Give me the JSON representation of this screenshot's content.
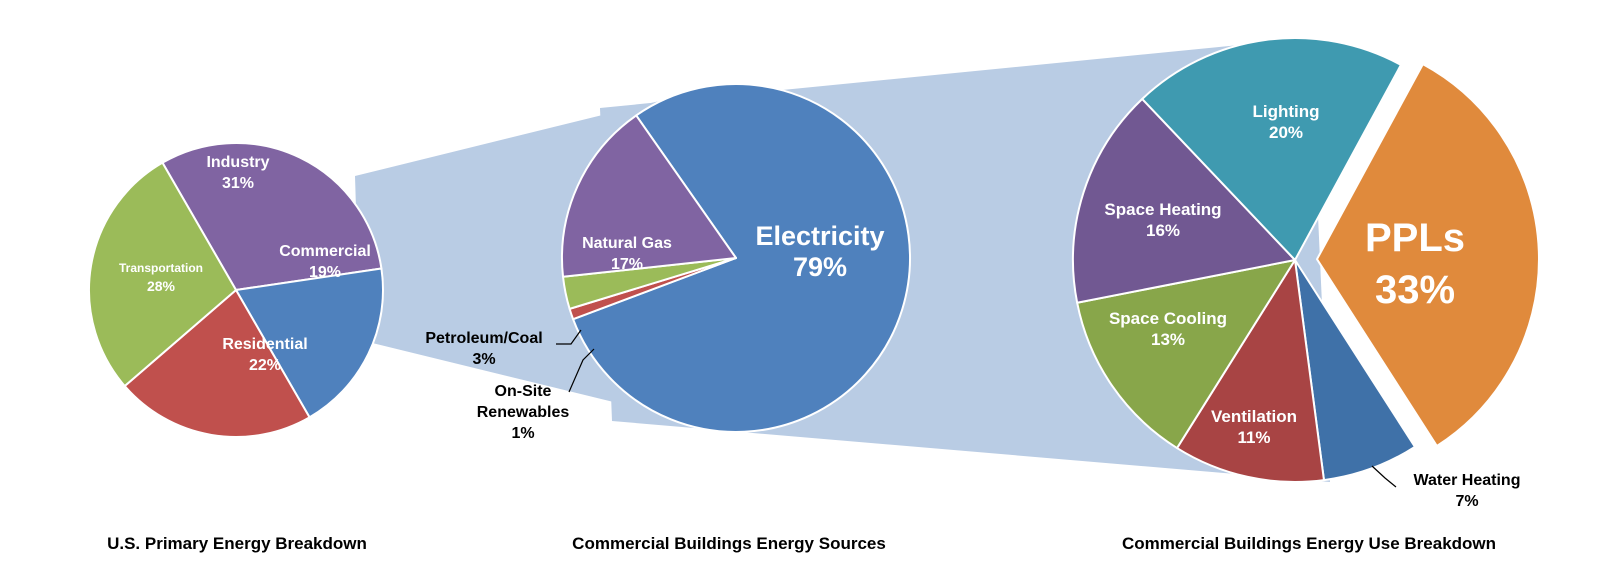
{
  "chart_data": [
    {
      "type": "pie",
      "title": "U.S. Primary Energy Breakdown",
      "slices": [
        {
          "label": "Industry",
          "value": 31,
          "value_label": "31%",
          "color": "#8064A2"
        },
        {
          "label": "Commercial",
          "value": 19,
          "value_label": "19%",
          "color": "#4F81BD"
        },
        {
          "label": "Residential",
          "value": 22,
          "value_label": "22%",
          "color": "#C0504D"
        },
        {
          "label": "Transportation",
          "value": 28,
          "value_label": "28%",
          "color": "#9BBB59"
        }
      ]
    },
    {
      "type": "pie",
      "title": "Commercial Buildings Energy Sources",
      "slices": [
        {
          "label": "Electricity",
          "value": 79,
          "value_label": "79%",
          "color": "#4F81BD"
        },
        {
          "label": "On-Site Renewables",
          "value": 1,
          "value_label": "1%",
          "color": "#C0504D"
        },
        {
          "label": "Petroleum/Coal",
          "value": 3,
          "value_label": "3%",
          "color": "#9BBB59"
        },
        {
          "label": "Natural Gas",
          "value": 17,
          "value_label": "17%",
          "color": "#8064A2"
        }
      ]
    },
    {
      "type": "pie",
      "title": "Commercial Buildings Energy Use Breakdown",
      "slices": [
        {
          "label": "PPLs",
          "value": 33,
          "value_label": "33%",
          "color": "#E08A3C",
          "exploded": true
        },
        {
          "label": "Water Heating",
          "value": 7,
          "value_label": "7%",
          "color": "#3F71A8"
        },
        {
          "label": "Ventilation",
          "value": 11,
          "value_label": "11%",
          "color": "#A84444"
        },
        {
          "label": "Space Cooling",
          "value": 13,
          "value_label": "13%",
          "color": "#88A64A"
        },
        {
          "label": "Space Heating",
          "value": 16,
          "value_label": "16%",
          "color": "#715892"
        },
        {
          "label": "Lighting",
          "value": 20,
          "value_label": "20%",
          "color": "#3F9AB0"
        }
      ]
    }
  ],
  "connector_color": "#B9CCE4"
}
